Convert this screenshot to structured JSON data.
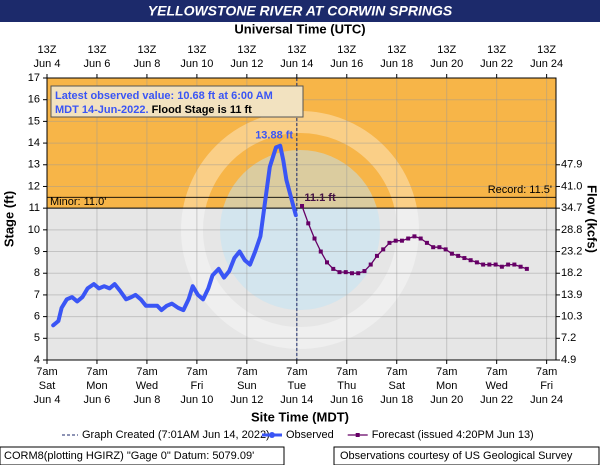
{
  "chart_data": {
    "type": "line",
    "title": "YELLOWSTONE RIVER AT CORWIN SPRINGS",
    "top_axis_label": "Universal Time (UTC)",
    "xlabel": "Site Time (MDT)",
    "ylabel": "Stage (ft)",
    "y2label": "Flow (kcfs)",
    "xlim": [
      "Jun 4 07:00",
      "Jun 24 16:00"
    ],
    "xticks": [
      {
        "value": "Jun 4 07:00",
        "label": "7am",
        "weekday": "Sat",
        "date": "Jun 4",
        "utc": "13Z"
      },
      {
        "value": "Jun 6 07:00",
        "label": "7am",
        "weekday": "Mon",
        "date": "Jun 6",
        "utc": "13Z"
      },
      {
        "value": "Jun 8 07:00",
        "label": "7am",
        "weekday": "Wed",
        "date": "Jun 8",
        "utc": "13Z"
      },
      {
        "value": "Jun 10 07:00",
        "label": "7am",
        "weekday": "Fri",
        "date": "Jun 10",
        "utc": "13Z"
      },
      {
        "value": "Jun 12 07:00",
        "label": "7am",
        "weekday": "Sun",
        "date": "Jun 12",
        "utc": "13Z"
      },
      {
        "value": "Jun 14 07:00",
        "label": "7am",
        "weekday": "Tue",
        "date": "Jun 14",
        "utc": "13Z"
      },
      {
        "value": "Jun 16 07:00",
        "label": "7am",
        "weekday": "Thu",
        "date": "Jun 16",
        "utc": "13Z"
      },
      {
        "value": "Jun 18 07:00",
        "label": "7am",
        "weekday": "Sat",
        "date": "Jun 18",
        "utc": "13Z"
      },
      {
        "value": "Jun 20 07:00",
        "label": "7am",
        "weekday": "Mon",
        "date": "Jun 20",
        "utc": "13Z"
      },
      {
        "value": "Jun 22 07:00",
        "label": "7am",
        "weekday": "Wed",
        "date": "Jun 22",
        "utc": "13Z"
      },
      {
        "value": "Jun 24 07:00",
        "label": "7am",
        "weekday": "Fri",
        "date": "Jun 24",
        "utc": "13Z"
      }
    ],
    "ylim": [
      4,
      17
    ],
    "yticks": [
      4,
      5,
      6,
      7,
      8,
      9,
      10,
      11,
      12,
      13,
      14,
      15,
      16,
      17
    ],
    "grid": true,
    "rating": [
      {
        "stage": 4,
        "flow": 4.9
      },
      {
        "stage": 5,
        "flow": 7.2
      },
      {
        "stage": 6,
        "flow": 10.3
      },
      {
        "stage": 7,
        "flow": 13.9
      },
      {
        "stage": 8,
        "flow": 18.2
      },
      {
        "stage": 9,
        "flow": 23.2
      },
      {
        "stage": 10,
        "flow": 28.8
      },
      {
        "stage": 11,
        "flow": 34.7
      },
      {
        "stage": 12,
        "flow": {
          "value": 41,
          "label": "41.0"
        }
      },
      {
        "stage": 13,
        "flow": 47.9
      }
    ],
    "flood_stage": {
      "value": 11,
      "label": "Minor: 11.0'",
      "color": "#f7b548"
    },
    "record": {
      "value": 11.5,
      "label": "Record: 11.5'"
    },
    "info": {
      "line1": "Latest observed value: 10.68 ft at 6:00 AM",
      "line2": "MDT 14-Jun-2022.",
      "line2b": " Flood Stage is 11 ft"
    },
    "created": {
      "x": "Jun 14 07:01",
      "label": "Graph Created (7:01AM Jun 14, 2022)"
    },
    "series": [
      {
        "name": "Observed",
        "color": "#3a55f5",
        "x": [
          "Jun 4 13:00",
          "Jun 4 18:00",
          "Jun 4 21:00",
          "Jun 5 02:00",
          "Jun 5 07:00",
          "Jun 5 12:00",
          "Jun 5 17:00",
          "Jun 5 22:00",
          "Jun 6 04:00",
          "Jun 6 09:00",
          "Jun 6 14:00",
          "Jun 6 19:00",
          "Jun 7 00:00",
          "Jun 7 05:00",
          "Jun 7 11:00",
          "Jun 7 16:00",
          "Jun 7 20:00",
          "Jun 8 01:00",
          "Jun 8 06:00",
          "Jun 8 12:00",
          "Jun 8 17:00",
          "Jun 8 21:00",
          "Jun 9 02:00",
          "Jun 9 07:00",
          "Jun 9 13:00",
          "Jun 9 18:00",
          "Jun 9 23:00",
          "Jun 10 03:00",
          "Jun 10 08:00",
          "Jun 10 13:00",
          "Jun 10 18:00",
          "Jun 10 22:00",
          "Jun 11 04:00",
          "Jun 11 09:00",
          "Jun 11 14:00",
          "Jun 11 19:00",
          "Jun 12 00:00",
          "Jun 12 05:00",
          "Jun 12 10:00",
          "Jun 12 15:00",
          "Jun 12 20:00",
          "Jun 13 00:00",
          "Jun 13 05:00",
          "Jun 13 11:00",
          "Jun 13 15:00",
          "Jun 13 18:00",
          "Jun 13 21:00",
          "Jun 14 02:00",
          "Jun 14 06:00"
        ],
        "values": [
          5.6,
          5.8,
          6.4,
          6.8,
          6.9,
          6.7,
          6.9,
          7.3,
          7.5,
          7.3,
          7.4,
          7.3,
          7.5,
          7.2,
          6.8,
          6.9,
          7.0,
          6.8,
          6.5,
          6.5,
          6.5,
          6.3,
          6.5,
          6.6,
          6.4,
          6.3,
          6.8,
          7.4,
          7.0,
          6.8,
          7.3,
          7.9,
          8.2,
          7.8,
          8.1,
          8.7,
          9.0,
          8.6,
          8.4,
          9.0,
          9.7,
          11.1,
          12.9,
          13.8,
          13.88,
          13.2,
          12.3,
          11.4,
          10.68
        ]
      },
      {
        "name": "Forecast (issued 4:20PM Jun 13)",
        "color": "#660066",
        "x": [
          "Jun 14 12:00",
          "Jun 14 18:00",
          "Jun 15 00:00",
          "Jun 15 06:00",
          "Jun 15 12:00",
          "Jun 15 18:00",
          "Jun 16 00:00",
          "Jun 16 06:00",
          "Jun 16 12:00",
          "Jun 16 18:00",
          "Jun 17 00:00",
          "Jun 17 06:00",
          "Jun 17 12:00",
          "Jun 17 18:00",
          "Jun 18 00:00",
          "Jun 18 06:00",
          "Jun 18 12:00",
          "Jun 18 18:00",
          "Jun 19 00:00",
          "Jun 19 06:00",
          "Jun 19 12:00",
          "Jun 19 18:00",
          "Jun 20 00:00",
          "Jun 20 06:00",
          "Jun 20 12:00",
          "Jun 20 18:00",
          "Jun 21 00:00",
          "Jun 21 06:00",
          "Jun 21 12:00",
          "Jun 21 18:00",
          "Jun 22 00:00",
          "Jun 22 06:00",
          "Jun 22 12:00",
          "Jun 22 18:00",
          "Jun 23 00:00",
          "Jun 23 06:00",
          "Jun 23 12:00"
        ],
        "values": [
          11.1,
          10.3,
          9.6,
          9.0,
          8.5,
          8.2,
          8.05,
          8.05,
          8.0,
          8.0,
          8.1,
          8.4,
          8.8,
          9.1,
          9.4,
          9.5,
          9.5,
          9.6,
          9.7,
          9.6,
          9.4,
          9.2,
          9.2,
          9.1,
          8.9,
          8.8,
          8.7,
          8.6,
          8.5,
          8.4,
          8.4,
          8.4,
          8.3,
          8.4,
          8.4,
          8.3,
          8.2
        ]
      }
    ],
    "annotations": [
      {
        "text": "13.88 ft",
        "x": "Jun 13 15:00",
        "y": 13.88,
        "color": "#3a55f5"
      },
      {
        "text": "11.1 ft",
        "x": "Jun 14 12:00",
        "y": 11.1,
        "color": "#441144"
      }
    ],
    "footer_left": "CORM8(plotting HGIRZ) \"Gage 0\" Datum: 5079.09'",
    "footer_right": "Observations courtesy of US Geological Survey"
  }
}
